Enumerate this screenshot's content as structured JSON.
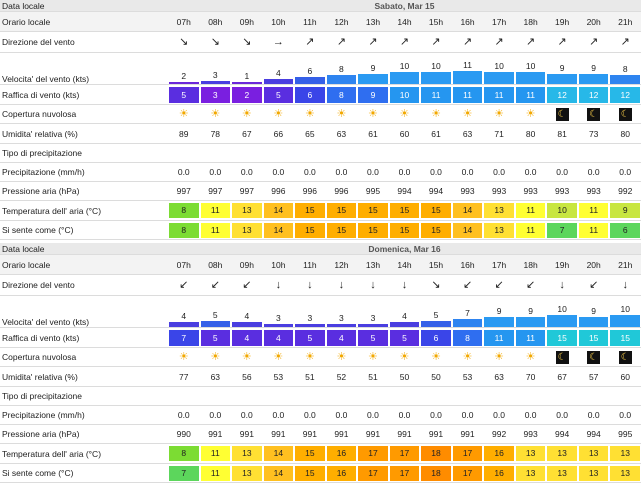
{
  "labels": {
    "date": "Data locale",
    "hour": "Orario locale",
    "direction": "Direzione del vento",
    "speed": "Velocita' del vento (kts)",
    "gust": "Raffica di vento (kts)",
    "cloud": "Copertura nuvolosa",
    "humidity": "Umidita' relativa (%)",
    "precip_type": "Tipo di precipitazione",
    "precip": "Precipitazione (mm/h)",
    "pressure": "Pressione aria (hPa)",
    "temp": "Temperatura dell' aria (°C)",
    "feels": "Si sente come (°C)"
  },
  "icons": {
    "sun": "sun-icon",
    "moon": "moon-icon",
    "arrow": "wind-direction-arrow-icon"
  },
  "colors": {
    "bar_max": "#1e90ff",
    "gust_low": "#6a28d9",
    "warm": "#ff9a00"
  },
  "days": [
    {
      "date": "Sabato, Mar 15",
      "hours": [
        "07h",
        "08h",
        "09h",
        "10h",
        "11h",
        "12h",
        "13h",
        "14h",
        "15h",
        "16h",
        "17h",
        "18h",
        "19h",
        "20h",
        "21h"
      ],
      "direction_glyphs": [
        "↘",
        "↘",
        "↘",
        "→",
        "↗",
        "↗",
        "↗",
        "↗",
        "↗",
        "↗",
        "↗",
        "↗",
        "↗",
        "↗",
        "↗"
      ],
      "speed": [
        "2",
        "3",
        "1",
        "4",
        "6",
        "8",
        "9",
        "10",
        "10",
        "11",
        "10",
        "10",
        "9",
        "9",
        "8"
      ],
      "gust": [
        "5",
        "3",
        "2",
        "5",
        "6",
        "8",
        "9",
        "10",
        "11",
        "11",
        "11",
        "11",
        "12",
        "12",
        "12"
      ],
      "cloud": [
        "sun",
        "sun",
        "sun",
        "sun",
        "sun",
        "sun",
        "sun",
        "sun",
        "sun",
        "sun",
        "sun",
        "sun",
        "moon",
        "moon",
        "moon"
      ],
      "humidity": [
        "89",
        "78",
        "67",
        "66",
        "65",
        "63",
        "61",
        "60",
        "61",
        "63",
        "71",
        "80",
        "81",
        "73",
        "80"
      ],
      "precip_type": [
        "",
        "",
        "",
        "",
        "",
        "",
        "",
        "",
        "",
        "",
        "",
        "",
        "",
        "",
        ""
      ],
      "precip": [
        "0.0",
        "0.0",
        "0.0",
        "0.0",
        "0.0",
        "0.0",
        "0.0",
        "0.0",
        "0.0",
        "0.0",
        "0.0",
        "0.0",
        "0.0",
        "0.0",
        "0.0"
      ],
      "pressure": [
        "997",
        "997",
        "997",
        "996",
        "996",
        "996",
        "995",
        "994",
        "994",
        "993",
        "993",
        "993",
        "993",
        "993",
        "992"
      ],
      "temp": [
        "8",
        "11",
        "13",
        "14",
        "15",
        "15",
        "15",
        "15",
        "15",
        "14",
        "13",
        "11",
        "10",
        "11",
        "9"
      ],
      "feels": [
        "8",
        "11",
        "13",
        "14",
        "15",
        "15",
        "15",
        "15",
        "15",
        "14",
        "13",
        "11",
        "7",
        "11",
        "6"
      ]
    },
    {
      "date": "Domenica, Mar 16",
      "hours": [
        "07h",
        "08h",
        "09h",
        "10h",
        "11h",
        "12h",
        "13h",
        "14h",
        "15h",
        "16h",
        "17h",
        "18h",
        "19h",
        "20h",
        "21h"
      ],
      "direction_glyphs": [
        "↙",
        "↙",
        "↙",
        "↓",
        "↓",
        "↓",
        "↓",
        "↓",
        "↘",
        "↙",
        "↙",
        "↙",
        "↓",
        "↙",
        "↓"
      ],
      "speed": [
        "4",
        "5",
        "4",
        "3",
        "3",
        "3",
        "3",
        "4",
        "5",
        "7",
        "9",
        "9",
        "10",
        "9",
        "10"
      ],
      "gust": [
        "7",
        "5",
        "4",
        "4",
        "5",
        "4",
        "5",
        "5",
        "6",
        "8",
        "11",
        "11",
        "15",
        "15",
        "15"
      ],
      "cloud": [
        "sun",
        "sun",
        "sun",
        "sun",
        "sun",
        "sun",
        "sun",
        "sun",
        "sun",
        "sun",
        "sun",
        "sun",
        "moon",
        "moon",
        "moon"
      ],
      "humidity": [
        "77",
        "63",
        "56",
        "53",
        "51",
        "52",
        "51",
        "50",
        "50",
        "53",
        "63",
        "70",
        "67",
        "57",
        "60"
      ],
      "precip_type": [
        "",
        "",
        "",
        "",
        "",
        "",
        "",
        "",
        "",
        "",
        "",
        "",
        "",
        "",
        ""
      ],
      "precip": [
        "0.0",
        "0.0",
        "0.0",
        "0.0",
        "0.0",
        "0.0",
        "0.0",
        "0.0",
        "0.0",
        "0.0",
        "0.0",
        "0.0",
        "0.0",
        "0.0",
        "0.0"
      ],
      "pressure": [
        "990",
        "991",
        "991",
        "991",
        "991",
        "991",
        "991",
        "991",
        "991",
        "991",
        "992",
        "993",
        "994",
        "994",
        "995"
      ],
      "temp": [
        "8",
        "11",
        "13",
        "14",
        "15",
        "16",
        "17",
        "17",
        "18",
        "17",
        "16",
        "13",
        "13",
        "13",
        "13"
      ],
      "feels": [
        "7",
        "11",
        "13",
        "14",
        "15",
        "16",
        "17",
        "17",
        "18",
        "17",
        "16",
        "13",
        "13",
        "13",
        "13"
      ]
    }
  ]
}
